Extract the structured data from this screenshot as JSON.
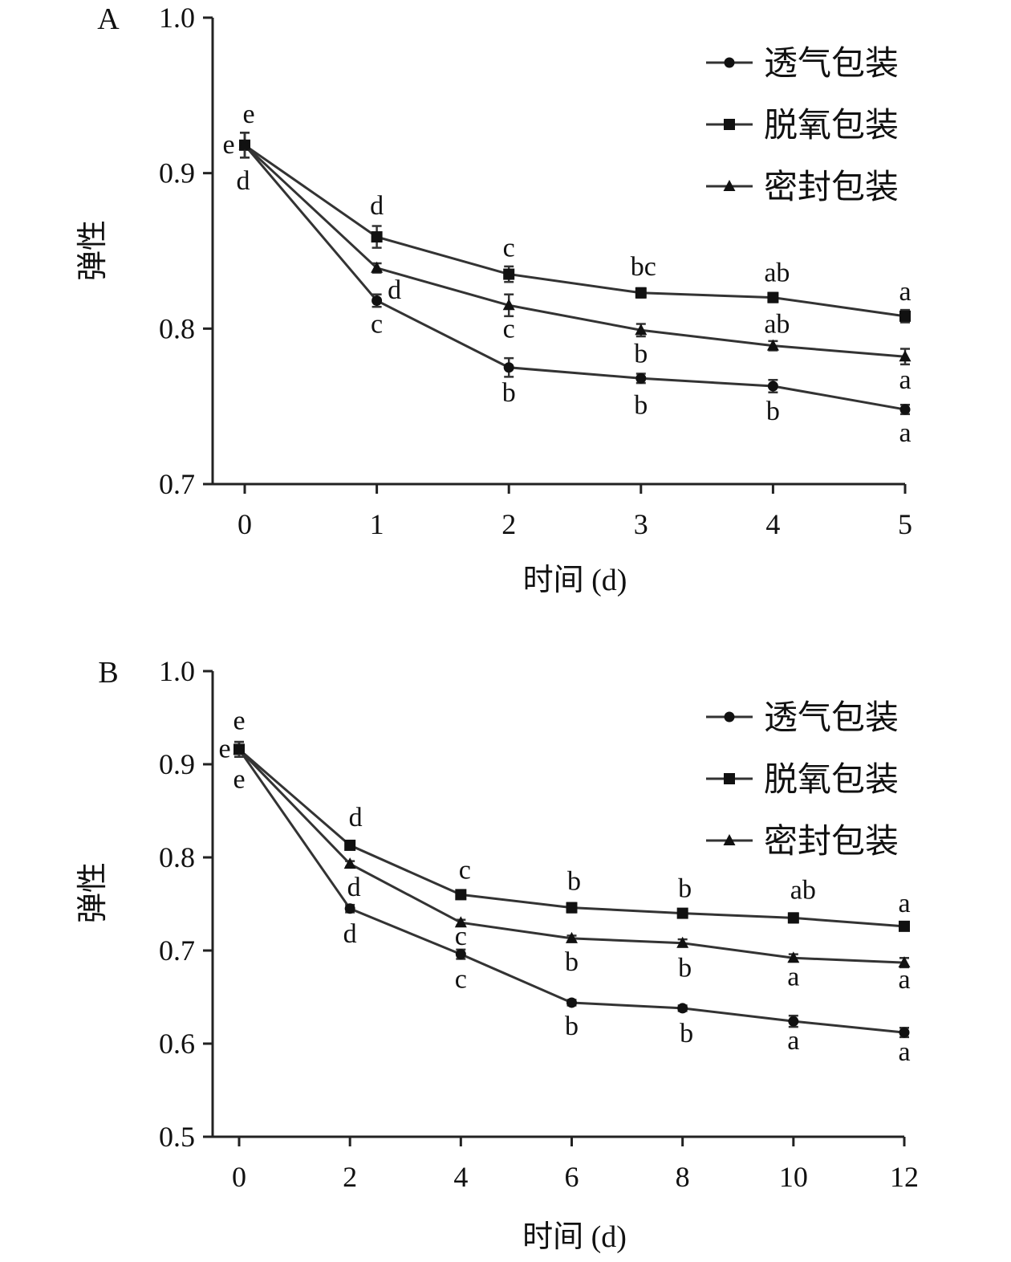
{
  "chart_data": [
    {
      "type": "line",
      "panel": "A",
      "xlabel": "时间 (d)",
      "ylabel": "弹性",
      "x": [
        0,
        1,
        2,
        3,
        4,
        5
      ],
      "xlim": [
        0,
        5
      ],
      "ylim": [
        0.7,
        1.0
      ],
      "yticks": [
        "0.7",
        "0.8",
        "0.9",
        "1.0"
      ],
      "xticks": [
        "0",
        "1",
        "2",
        "3",
        "4",
        "5"
      ],
      "grid": false,
      "legend": "top-right",
      "series": [
        {
          "name": "透气包装",
          "marker": "circle",
          "values": [
            0.918,
            0.818,
            0.775,
            0.768,
            0.763,
            0.748
          ],
          "errors": [
            0.008,
            0.004,
            0.006,
            0.003,
            0.004,
            0.003
          ],
          "letters": [
            "e",
            "c",
            "b",
            "b",
            "b",
            "a"
          ]
        },
        {
          "name": "脱氧包装",
          "marker": "square",
          "values": [
            0.918,
            0.859,
            0.835,
            0.823,
            0.82,
            0.808
          ],
          "errors": [
            0.008,
            0.007,
            0.005,
            0.003,
            0.003,
            0.004
          ],
          "letters": [
            "e",
            "d",
            "c",
            "bc",
            "ab",
            "a"
          ]
        },
        {
          "name": "密封包装",
          "marker": "triangle",
          "values": [
            0.918,
            0.839,
            0.815,
            0.799,
            0.789,
            0.782
          ],
          "errors": [
            0.008,
            0.003,
            0.007,
            0.004,
            0.003,
            0.005
          ],
          "letters": [
            "d",
            "d",
            "c",
            "b",
            "ab",
            "a"
          ]
        }
      ]
    },
    {
      "type": "line",
      "panel": "B",
      "xlabel": "时间 (d)",
      "ylabel": "弹性",
      "x": [
        0,
        2,
        4,
        6,
        8,
        10,
        12
      ],
      "xlim": [
        0,
        12
      ],
      "ylim": [
        0.5,
        1.0
      ],
      "yticks": [
        "0.5",
        "0.6",
        "0.7",
        "0.8",
        "0.9",
        "1.0"
      ],
      "xticks": [
        "0",
        "2",
        "4",
        "6",
        "8",
        "10",
        "12"
      ],
      "grid": false,
      "legend": "top-right",
      "series": [
        {
          "name": "透气包装",
          "marker": "circle",
          "values": [
            0.916,
            0.745,
            0.696,
            0.644,
            0.638,
            0.624,
            0.612
          ],
          "errors": [
            0.008,
            0.004,
            0.005,
            0.003,
            0.003,
            0.006,
            0.005
          ],
          "letters": [
            "e",
            "d",
            "c",
            "b",
            "b",
            "a",
            "a"
          ]
        },
        {
          "name": "脱氧包装",
          "marker": "square",
          "values": [
            0.916,
            0.813,
            0.76,
            0.746,
            0.74,
            0.735,
            0.726
          ],
          "errors": [
            0.008,
            0.004,
            0.004,
            0.005,
            0.004,
            0.005,
            0.004
          ],
          "letters": [
            "e",
            "d",
            "c",
            "b",
            "b",
            "ab",
            "a"
          ]
        },
        {
          "name": "密封包装",
          "marker": "triangle",
          "values": [
            0.916,
            0.793,
            0.73,
            0.713,
            0.708,
            0.692,
            0.687
          ],
          "errors": [
            0.008,
            0.003,
            0.003,
            0.003,
            0.004,
            0.004,
            0.005
          ],
          "letters": [
            "e",
            "d",
            "c",
            "b",
            "b",
            "a",
            "a"
          ]
        }
      ]
    }
  ]
}
